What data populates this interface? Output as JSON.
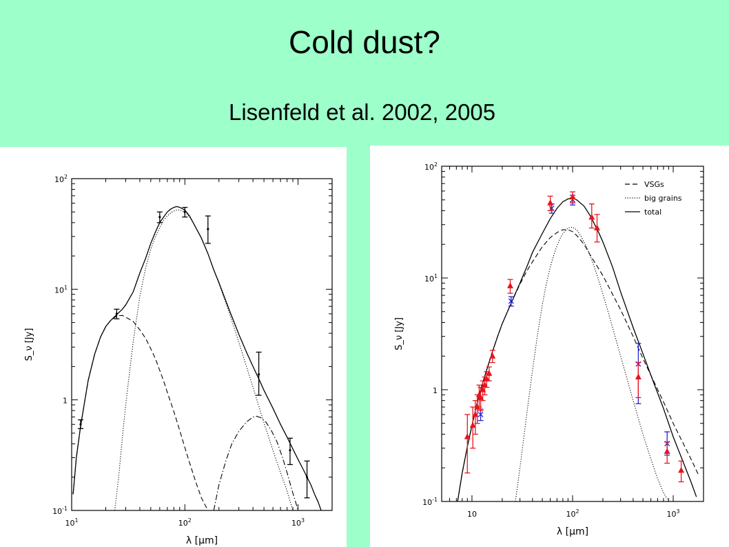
{
  "slide": {
    "title": "Cold dust?",
    "subtitle": "Lisenfeld et al. 2002, 2005"
  },
  "colors": {
    "background": "#9dffca",
    "panel": "#ffffff",
    "red_points": "#e8141e",
    "blue_points": "#2222cc"
  },
  "chart_data": [
    {
      "type": "line",
      "xscale": "log",
      "yscale": "log",
      "xlim": [
        10,
        2000
      ],
      "ylim": [
        0.1,
        100
      ],
      "xlabel": "λ [μm]",
      "ylabel": "S_ν [Jy]",
      "xticks": [
        "10^1",
        "10^2",
        "10^3"
      ],
      "yticks": [
        "10^-1",
        "1",
        "10^1",
        "10^2"
      ],
      "grid": false,
      "series": [
        {
          "style": "solid",
          "x": [
            10.3,
            11,
            12,
            13,
            14,
            16,
            18,
            20,
            22,
            25,
            28,
            30,
            35,
            40,
            45,
            50,
            55,
            60,
            65,
            70,
            75,
            80,
            85,
            90,
            100,
            110,
            120,
            140,
            160,
            180,
            200,
            250,
            300,
            350,
            400,
            450,
            500,
            600,
            700,
            800,
            900,
            1000,
            1100,
            1200,
            1300,
            1400,
            1500,
            1600
          ],
          "y": [
            0.14,
            0.3,
            0.58,
            0.95,
            1.5,
            2.6,
            3.7,
            4.6,
            5.2,
            5.9,
            6.6,
            7.2,
            9.5,
            14,
            19,
            26,
            33,
            40,
            45,
            50,
            53,
            55,
            56,
            55,
            52,
            46,
            39,
            29,
            21,
            15,
            11.5,
            6.3,
            3.9,
            2.7,
            2.0,
            1.55,
            1.22,
            0.84,
            0.6,
            0.46,
            0.36,
            0.29,
            0.24,
            0.2,
            0.17,
            0.14,
            0.12,
            0.1
          ]
        },
        {
          "style": "dashed",
          "x": [
            10.3,
            11,
            12,
            13,
            14,
            16,
            18,
            20,
            22,
            25,
            28,
            30,
            35,
            40,
            45,
            50,
            55,
            60,
            65,
            70,
            80,
            90,
            100,
            110,
            125,
            140,
            160,
            180
          ],
          "y": [
            0.14,
            0.3,
            0.58,
            0.95,
            1.5,
            2.6,
            3.7,
            4.6,
            5.2,
            5.75,
            5.8,
            5.6,
            5.1,
            4.3,
            3.6,
            2.9,
            2.35,
            1.85,
            1.48,
            1.17,
            0.78,
            0.53,
            0.37,
            0.27,
            0.18,
            0.13,
            0.1,
            0.1
          ]
        },
        {
          "style": "dotted",
          "x": [
            24,
            26,
            28,
            30,
            35,
            40,
            45,
            50,
            55,
            60,
            65,
            70,
            75,
            80,
            85,
            90,
            100,
            110,
            120,
            140,
            160,
            180,
            200,
            250,
            300,
            400,
            500,
            600,
            700,
            800,
            900
          ],
          "y": [
            0.1,
            0.2,
            0.45,
            0.9,
            3.4,
            8.6,
            15.5,
            23,
            30,
            36,
            42,
            46,
            49,
            51,
            52,
            52,
            50,
            45,
            39,
            29,
            21,
            15,
            11.3,
            5.9,
            3.3,
            1.3,
            0.62,
            0.35,
            0.22,
            0.15,
            0.1
          ]
        },
        {
          "style": "dash-dot",
          "x": [
            180,
            200,
            230,
            260,
            300,
            350,
            400,
            430,
            470,
            520,
            580,
            650,
            730,
            800,
            880,
            950,
            1000
          ],
          "y": [
            0.1,
            0.17,
            0.28,
            0.4,
            0.52,
            0.63,
            0.7,
            0.71,
            0.69,
            0.63,
            0.53,
            0.42,
            0.3,
            0.22,
            0.155,
            0.12,
            0.1
          ]
        }
      ],
      "points": {
        "x": [
          12,
          25,
          60,
          100,
          160,
          450,
          850,
          1200
        ],
        "y": [
          0.6,
          6,
          45,
          50,
          35,
          1.7,
          0.35,
          0.2
        ],
        "yerr_low": [
          0.55,
          5.4,
          40,
          45,
          26,
          1.1,
          0.26,
          0.13
        ],
        "yerr_high": [
          0.66,
          6.6,
          50,
          55,
          46,
          2.7,
          0.45,
          0.28
        ]
      }
    },
    {
      "type": "line",
      "xscale": "log",
      "yscale": "log",
      "xlim": [
        5,
        2000
      ],
      "ylim": [
        0.1,
        100
      ],
      "xlabel": "λ [μm]",
      "ylabel": "S_ν [Jy]",
      "xticks": [
        "10",
        "10^2",
        "10^3"
      ],
      "yticks": [
        "10^-1",
        "1",
        "10^1",
        "10^2"
      ],
      "grid": false,
      "legend": {
        "placement": "top-right",
        "entries": [
          "VSGs",
          "big grains",
          "total"
        ]
      },
      "series": [
        {
          "name": "VSGs",
          "style": "dashed",
          "x": [
            7.2,
            8,
            9,
            10,
            11,
            12,
            14,
            16,
            18,
            20,
            25,
            30,
            35,
            40,
            50,
            60,
            70,
            80,
            90,
            100,
            110,
            130,
            150,
            200,
            300,
            400,
            500,
            600,
            800,
            1000,
            1200,
            1500,
            1800
          ],
          "y": [
            0.1,
            0.18,
            0.31,
            0.48,
            0.7,
            0.95,
            1.5,
            2.2,
            3,
            3.9,
            6.2,
            8.8,
            11.5,
            14,
            19,
            23,
            25.5,
            27,
            27,
            26,
            24,
            20,
            16,
            10.5,
            5.2,
            3,
            1.9,
            1.35,
            0.78,
            0.5,
            0.36,
            0.24,
            0.17
          ]
        },
        {
          "name": "big grains",
          "style": "dotted",
          "x": [
            27,
            30,
            35,
            40,
            45,
            50,
            55,
            60,
            65,
            70,
            75,
            80,
            90,
            100,
            110,
            120,
            140,
            160,
            180,
            200,
            250,
            300,
            400,
            500,
            600,
            700,
            800,
            900,
            1000
          ],
          "y": [
            0.1,
            0.2,
            0.6,
            1.5,
            3.2,
            5.7,
            9,
            12.5,
            16,
            19.5,
            22.5,
            25,
            28,
            28.5,
            27,
            24,
            18.5,
            13.5,
            9.8,
            7.2,
            3.6,
            2,
            0.8,
            0.4,
            0.24,
            0.16,
            0.12,
            0.1,
            0.09
          ]
        },
        {
          "name": "total",
          "style": "solid",
          "x": [
            7.2,
            8,
            9,
            10,
            11,
            12,
            14,
            16,
            18,
            20,
            25,
            30,
            35,
            40,
            50,
            60,
            70,
            80,
            90,
            100,
            110,
            130,
            150,
            180,
            200,
            250,
            300,
            400,
            500,
            600,
            800,
            1000,
            1200,
            1500,
            1700
          ],
          "y": [
            0.1,
            0.18,
            0.31,
            0.48,
            0.7,
            0.95,
            1.5,
            2.2,
            3,
            3.9,
            6.2,
            9,
            12.5,
            17,
            25,
            34,
            42,
            48,
            51,
            52,
            50,
            44,
            36,
            26,
            21,
            12.5,
            7.5,
            3.6,
            2.1,
            1.35,
            0.68,
            0.38,
            0.25,
            0.15,
            0.11
          ]
        }
      ],
      "points_red": {
        "x": [
          9,
          10.2,
          10.8,
          11.3,
          11.8,
          12.2,
          12.8,
          13.4,
          14,
          14.8,
          16,
          24,
          60,
          100,
          155,
          175,
          450,
          870,
          1200
        ],
        "y": [
          0.38,
          0.48,
          0.6,
          0.7,
          0.9,
          0.85,
          1.0,
          1.1,
          1.25,
          1.4,
          2.0,
          8.5,
          47,
          53,
          35,
          28,
          1.3,
          0.28,
          0.19
        ],
        "yerr_low": [
          0.18,
          0.3,
          0.4,
          0.5,
          0.7,
          0.65,
          0.8,
          0.9,
          1.05,
          1.2,
          1.75,
          7.3,
          40,
          47,
          28,
          21,
          0.85,
          0.22,
          0.15
        ],
        "yerr_high": [
          0.6,
          0.7,
          0.8,
          0.9,
          1.1,
          1.05,
          1.2,
          1.3,
          1.45,
          1.6,
          2.25,
          9.7,
          54,
          59,
          46,
          37,
          1.75,
          0.34,
          0.23
        ]
      },
      "points_blue": {
        "x": [
          12.2,
          24.5,
          62,
          100,
          450,
          870
        ],
        "y": [
          0.6,
          6.2,
          42,
          50,
          1.7,
          0.33
        ],
        "yerr_low": [
          0.53,
          5.6,
          38,
          45,
          0.75,
          0.26
        ],
        "yerr_high": [
          0.67,
          6.8,
          46,
          55,
          2.6,
          0.42
        ]
      }
    }
  ]
}
